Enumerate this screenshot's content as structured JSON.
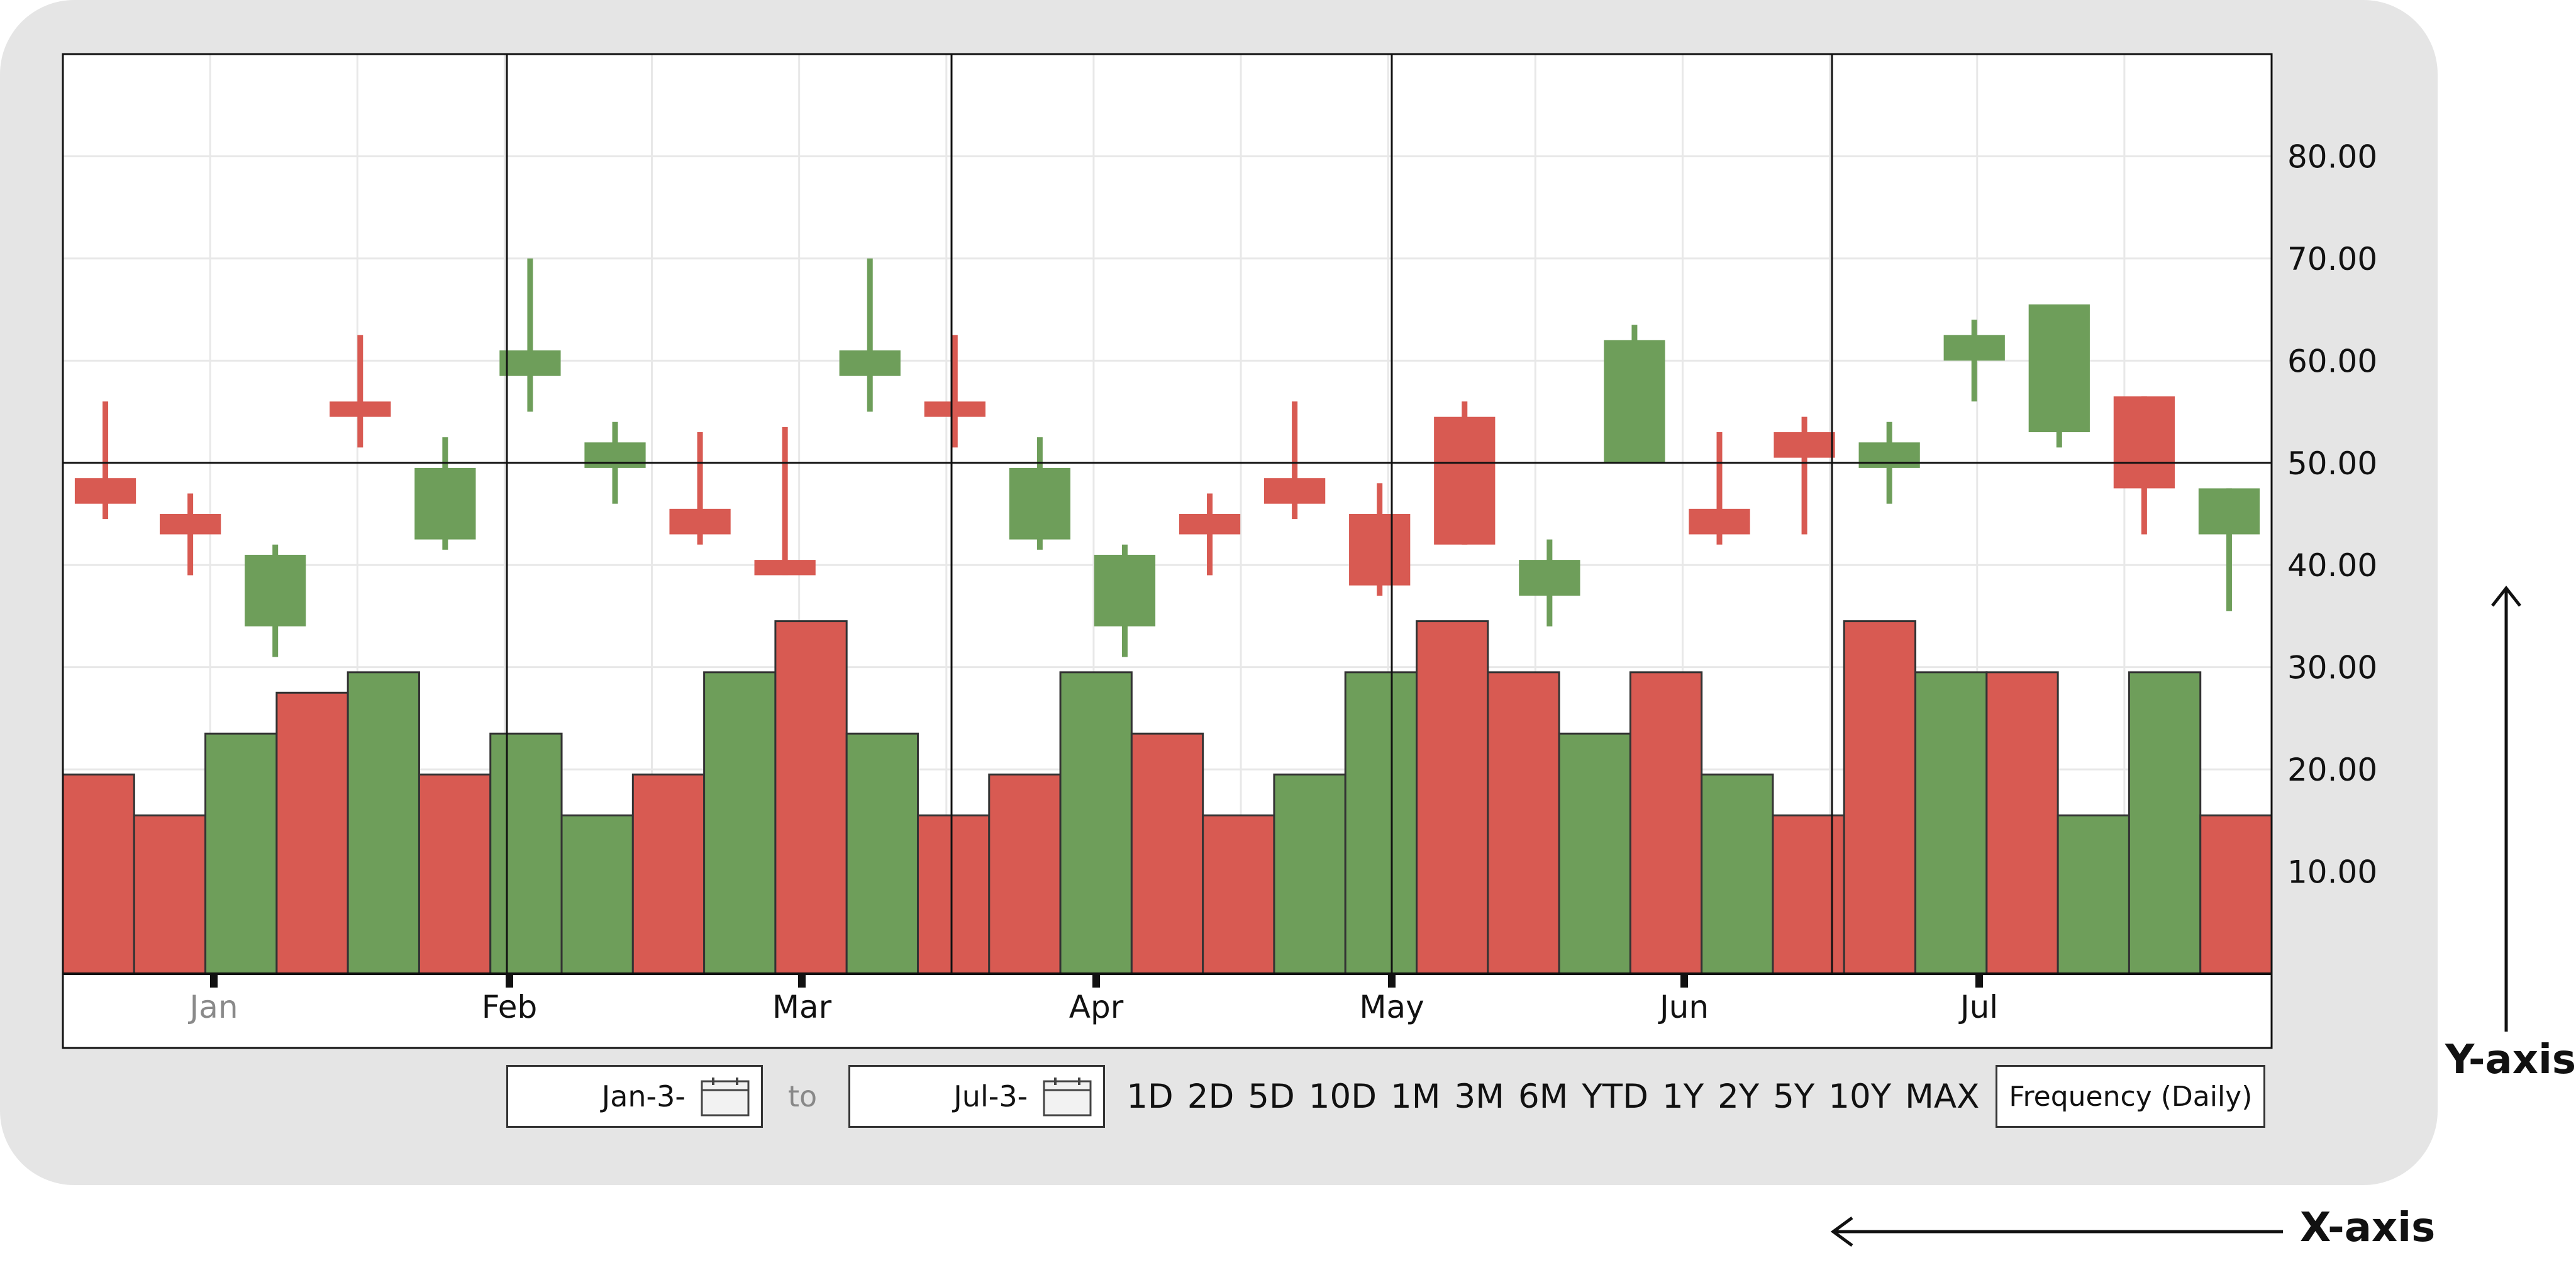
{
  "chart_data": {
    "type": "candlestick",
    "ylim": [
      0,
      90
    ],
    "yticks": [
      "10.00",
      "20.00",
      "30.00",
      "40.00",
      "50.00",
      "60.00",
      "70.00",
      "80.00"
    ],
    "ytick_values": [
      10,
      20,
      30,
      40,
      50,
      60,
      70,
      80
    ],
    "grid": true,
    "crosshair_y": 50,
    "months": [
      "Jan",
      "Feb",
      "Mar",
      "Apr",
      "May",
      "Jun",
      "Jul"
    ],
    "colors": {
      "up": "#6e9e5a",
      "down": "#d85a52",
      "outline": "#333333"
    },
    "candles": [
      {
        "open": 48.5,
        "close": 46.0,
        "high": 56.0,
        "low": 44.5
      },
      {
        "open": 45.0,
        "close": 43.0,
        "high": 47.0,
        "low": 39.0
      },
      {
        "open": 34.0,
        "close": 41.0,
        "high": 42.0,
        "low": 31.0
      },
      {
        "open": 56.0,
        "close": 54.5,
        "high": 62.5,
        "low": 51.5
      },
      {
        "open": 42.5,
        "close": 49.5,
        "high": 52.5,
        "low": 41.5
      },
      {
        "open": 58.5,
        "close": 61.0,
        "high": 70.0,
        "low": 55.0
      },
      {
        "open": 49.5,
        "close": 52.0,
        "high": 54.0,
        "low": 46.0
      },
      {
        "open": 45.5,
        "close": 43.0,
        "high": 53.0,
        "low": 42.0
      },
      {
        "open": 40.5,
        "close": 39.0,
        "high": 53.5,
        "low": 39.0
      },
      {
        "open": 58.5,
        "close": 61.0,
        "high": 70.0,
        "low": 55.0
      },
      {
        "open": 56.0,
        "close": 54.5,
        "high": 62.5,
        "low": 51.5
      },
      {
        "open": 42.5,
        "close": 49.5,
        "high": 52.5,
        "low": 41.5
      },
      {
        "open": 34.0,
        "close": 41.0,
        "high": 42.0,
        "low": 31.0
      },
      {
        "open": 45.0,
        "close": 43.0,
        "high": 47.0,
        "low": 39.0
      },
      {
        "open": 48.5,
        "close": 46.0,
        "high": 56.0,
        "low": 44.5
      },
      {
        "open": 45.0,
        "close": 38.0,
        "high": 48.0,
        "low": 37.0
      },
      {
        "open": 54.5,
        "close": 42.0,
        "high": 56.0,
        "low": 42.0
      },
      {
        "open": 37.0,
        "close": 40.5,
        "high": 42.5,
        "low": 34.0
      },
      {
        "open": 50.0,
        "close": 62.0,
        "high": 63.5,
        "low": 50.0
      },
      {
        "open": 45.5,
        "close": 43.0,
        "high": 53.0,
        "low": 42.0
      },
      {
        "open": 53.0,
        "close": 50.5,
        "high": 54.5,
        "low": 43.0
      },
      {
        "open": 49.5,
        "close": 52.0,
        "high": 54.0,
        "low": 46.0
      },
      {
        "open": 60.0,
        "close": 62.5,
        "high": 64.0,
        "low": 56.0
      },
      {
        "open": 53.0,
        "close": 65.5,
        "high": 65.5,
        "low": 51.5
      },
      {
        "open": 56.5,
        "close": 47.5,
        "high": 56.5,
        "low": 43.0
      },
      {
        "open": 43.0,
        "close": 47.5,
        "high": 47.5,
        "low": 35.5
      }
    ],
    "volume_bars": [
      {
        "value": 19.5,
        "color": "down"
      },
      {
        "value": 15.5,
        "color": "down"
      },
      {
        "value": 23.5,
        "color": "up"
      },
      {
        "value": 27.5,
        "color": "down"
      },
      {
        "value": 29.5,
        "color": "up"
      },
      {
        "value": 19.5,
        "color": "down"
      },
      {
        "value": 23.5,
        "color": "up"
      },
      {
        "value": 15.5,
        "color": "up"
      },
      {
        "value": 19.5,
        "color": "down"
      },
      {
        "value": 29.5,
        "color": "up"
      },
      {
        "value": 34.5,
        "color": "down"
      },
      {
        "value": 23.5,
        "color": "up"
      },
      {
        "value": 15.5,
        "color": "down"
      },
      {
        "value": 19.5,
        "color": "down"
      },
      {
        "value": 29.5,
        "color": "up"
      },
      {
        "value": 23.5,
        "color": "down"
      },
      {
        "value": 15.5,
        "color": "down"
      },
      {
        "value": 19.5,
        "color": "up"
      },
      {
        "value": 29.5,
        "color": "up"
      },
      {
        "value": 34.5,
        "color": "down"
      },
      {
        "value": 29.5,
        "color": "down"
      },
      {
        "value": 23.5,
        "color": "up"
      },
      {
        "value": 29.5,
        "color": "down"
      },
      {
        "value": 19.5,
        "color": "up"
      },
      {
        "value": 15.5,
        "color": "down"
      },
      {
        "value": 34.5,
        "color": "down"
      },
      {
        "value": 29.5,
        "color": "up"
      },
      {
        "value": 29.5,
        "color": "down"
      },
      {
        "value": 15.5,
        "color": "up"
      },
      {
        "value": 29.5,
        "color": "up"
      },
      {
        "value": 15.5,
        "color": "down"
      }
    ]
  },
  "controls": {
    "start_date": "Jan-3-",
    "to_label": "to",
    "end_date": "Jul-3-",
    "calendar_icon": "calendar-icon",
    "ranges": [
      "1D",
      "2D",
      "5D",
      "10D",
      "1M",
      "3M",
      "6M",
      "YTD",
      "1Y",
      "2Y",
      "5Y",
      "10Y",
      "MAX"
    ],
    "frequency": "Frequency (Daily)"
  },
  "axes": {
    "y_axis_label": "Y-axis",
    "x_axis_label": "X-axis",
    "arrow_icon": "arrow-icon"
  }
}
